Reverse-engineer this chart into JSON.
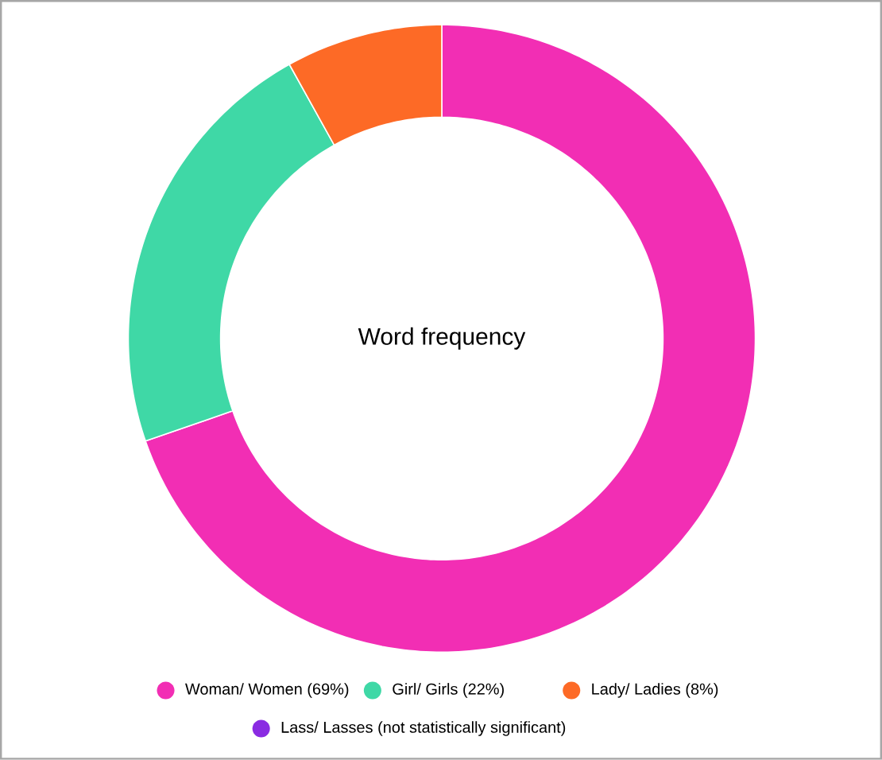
{
  "chart_data": {
    "type": "donut",
    "title": "Word frequency",
    "categories": [
      "Woman/ Women (69%)",
      "Girl/ Girls (22%)",
      "Lady/ Ladies (8%)",
      "Lass/ Lasses (not statistically significant)"
    ],
    "values": [
      69,
      22,
      8,
      null
    ],
    "colors": [
      "#f22eb4",
      "#3fd8a6",
      "#fd6a26",
      "#8a2be2"
    ],
    "legend": "bottom"
  }
}
